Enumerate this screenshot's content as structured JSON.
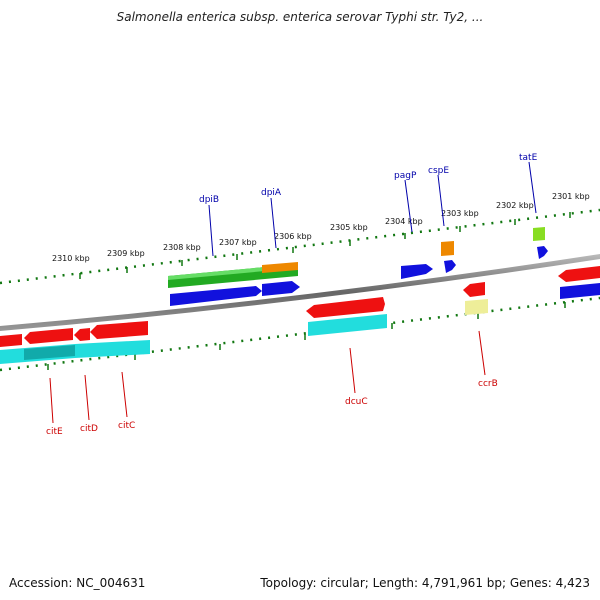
{
  "title": "Salmonella enterica subsp. enterica serovar Typhi str. Ty2, ...",
  "footer": {
    "accession": "Accession: NC_004631",
    "summary": "Topology: circular; Length: 4,791,961 bp; Genes: 4,423"
  },
  "ticks": [
    "2310 kbp",
    "2309 kbp",
    "2308 kbp",
    "2307 kbp",
    "2306 kbp",
    "2305 kbp",
    "2304 kbp",
    "2303 kbp",
    "2302 kbp",
    "2301 kbp"
  ],
  "gene_labels": {
    "top": [
      "dpiB",
      "dpiA",
      "pagP",
      "cspE",
      "tatE"
    ],
    "bottom": [
      "citE",
      "citD",
      "citC",
      "dcuC",
      "ccrB"
    ]
  },
  "colors": {
    "red": "#ee1111",
    "blue": "#1111dd",
    "green": "#22aa22",
    "cyan": "#22dddd",
    "orange": "#ee8800",
    "yellow": "#eeee99",
    "lime": "#88dd22",
    "tick_green": "#117711",
    "label_blue": "#0000aa",
    "label_red": "#cc0000"
  }
}
